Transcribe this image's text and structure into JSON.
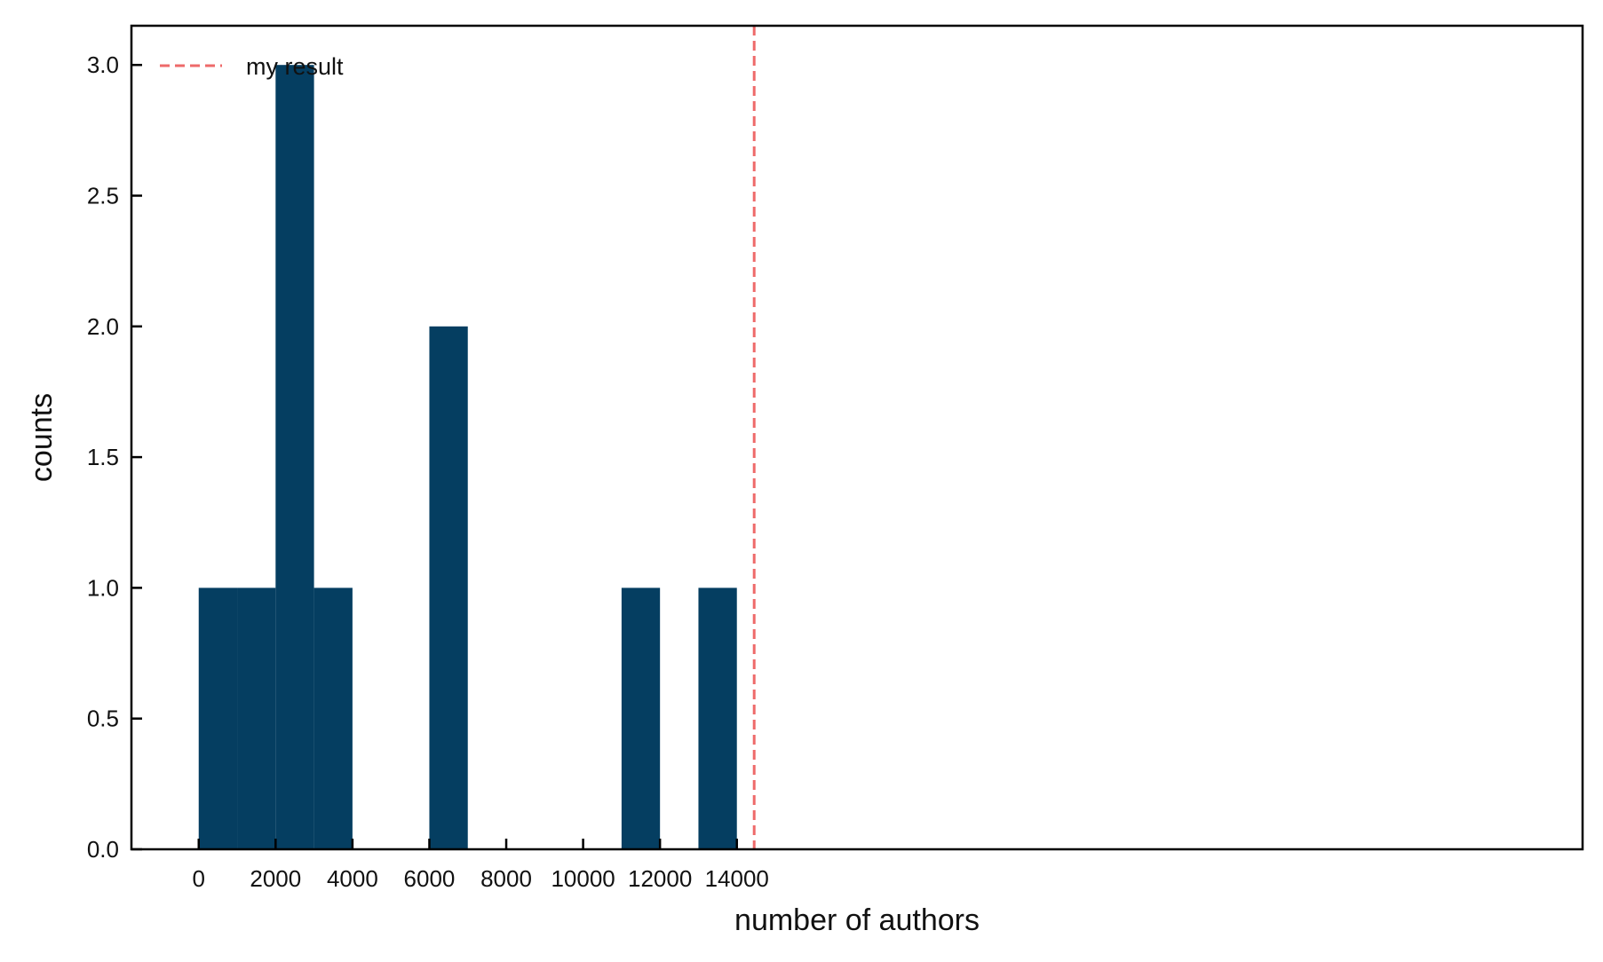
{
  "colors": {
    "bar": "#053e61",
    "marker": "#ee6a6a",
    "axis": "#000000"
  },
  "chart_data": {
    "type": "bar",
    "title": "",
    "xlabel": "number of authors",
    "ylabel": "counts",
    "xlim": [
      -1750,
      36000
    ],
    "ylim": [
      0,
      3.15
    ],
    "x_ticks": [
      0,
      2000,
      4000,
      6000,
      8000,
      10000,
      12000,
      14000
    ],
    "y_ticks": [
      0.0,
      0.5,
      1.0,
      1.5,
      2.0,
      2.5,
      3.0
    ],
    "bins": [
      {
        "x0": 0,
        "x1": 1000,
        "count": 1
      },
      {
        "x0": 1000,
        "x1": 2000,
        "count": 1
      },
      {
        "x0": 2000,
        "x1": 3000,
        "count": 3
      },
      {
        "x0": 3000,
        "x1": 4000,
        "count": 1
      },
      {
        "x0": 6000,
        "x1": 7000,
        "count": 2
      },
      {
        "x0": 11000,
        "x1": 12000,
        "count": 1
      },
      {
        "x0": 13000,
        "x1": 14000,
        "count": 1
      }
    ],
    "reference_line": {
      "label": "my result",
      "x": 14450,
      "style": "dashed"
    },
    "legend": {
      "position": "top-left",
      "entries": [
        "my result"
      ]
    },
    "grid": false
  }
}
